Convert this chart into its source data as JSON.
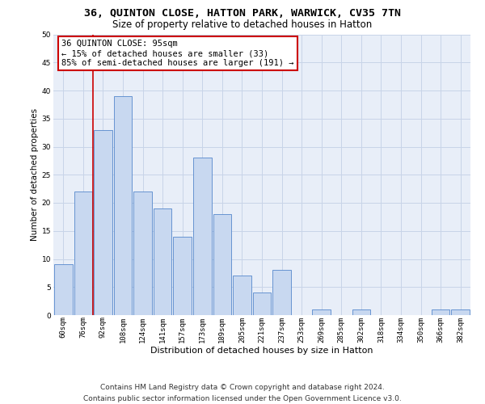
{
  "title": "36, QUINTON CLOSE, HATTON PARK, WARWICK, CV35 7TN",
  "subtitle": "Size of property relative to detached houses in Hatton",
  "xlabel": "Distribution of detached houses by size in Hatton",
  "ylabel": "Number of detached properties",
  "categories": [
    "60sqm",
    "76sqm",
    "92sqm",
    "108sqm",
    "124sqm",
    "141sqm",
    "157sqm",
    "173sqm",
    "189sqm",
    "205sqm",
    "221sqm",
    "237sqm",
    "253sqm",
    "269sqm",
    "285sqm",
    "302sqm",
    "318sqm",
    "334sqm",
    "350sqm",
    "366sqm",
    "382sqm"
  ],
  "values": [
    9,
    22,
    33,
    39,
    22,
    19,
    14,
    28,
    18,
    7,
    4,
    8,
    0,
    1,
    0,
    1,
    0,
    0,
    0,
    1,
    1
  ],
  "bar_color": "#c8d8f0",
  "bar_edge_color": "#5588cc",
  "property_line_x": 1.5,
  "property_line_color": "#cc0000",
  "annotation_line1": "36 QUINTON CLOSE: 95sqm",
  "annotation_line2": "← 15% of detached houses are smaller (33)",
  "annotation_line3": "85% of semi-detached houses are larger (191) →",
  "annotation_box_facecolor": "#ffffff",
  "annotation_box_edgecolor": "#cc0000",
  "ylim": [
    0,
    50
  ],
  "yticks": [
    0,
    5,
    10,
    15,
    20,
    25,
    30,
    35,
    40,
    45,
    50
  ],
  "grid_color": "#c8d4e8",
  "bg_color": "#e8eef8",
  "footer_line1": "Contains HM Land Registry data © Crown copyright and database right 2024.",
  "footer_line2": "Contains public sector information licensed under the Open Government Licence v3.0.",
  "title_fontsize": 9.5,
  "subtitle_fontsize": 8.5,
  "xlabel_fontsize": 8,
  "ylabel_fontsize": 7.5,
  "tick_fontsize": 6.5,
  "annotation_fontsize": 7.5,
  "footer_fontsize": 6.5
}
